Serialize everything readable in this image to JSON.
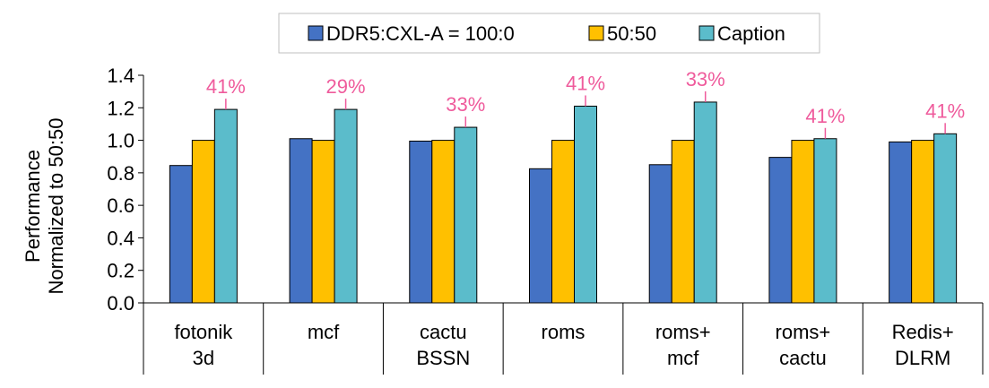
{
  "chart_data": {
    "type": "bar",
    "ylabel": [
      "Performance",
      "Normalized to 50:50"
    ],
    "ylim": [
      0,
      1.4
    ],
    "yticks": [
      "0.0",
      "0.2",
      "0.4",
      "0.6",
      "0.8",
      "1.0",
      "1.2",
      "1.4"
    ],
    "categories": [
      [
        "fotonik",
        "3d"
      ],
      [
        "mcf"
      ],
      [
        "cactu",
        "BSSN"
      ],
      [
        "roms"
      ],
      [
        "roms+",
        "mcf"
      ],
      [
        "roms+",
        "cactu"
      ],
      [
        "Redis+",
        "DLRM"
      ]
    ],
    "series": [
      {
        "name": "DDR5:CXL-A = 100:0",
        "color": "#4472c4",
        "values": [
          0.845,
          1.01,
          0.995,
          0.825,
          0.85,
          0.895,
          0.99
        ]
      },
      {
        "name": "50:50",
        "color": "#ffc000",
        "values": [
          1.0,
          1.0,
          1.0,
          1.0,
          1.0,
          1.0,
          1.0
        ]
      },
      {
        "name": "Caption",
        "color": "#5bbccb",
        "values": [
          1.19,
          1.19,
          1.08,
          1.21,
          1.235,
          1.01,
          1.04
        ]
      }
    ],
    "annotations": [
      "41%",
      "29%",
      "33%",
      "41%",
      "33%",
      "41%",
      "41%"
    ],
    "annotation_color": "#ef5b9c",
    "legend_position": "top",
    "grid": false
  }
}
